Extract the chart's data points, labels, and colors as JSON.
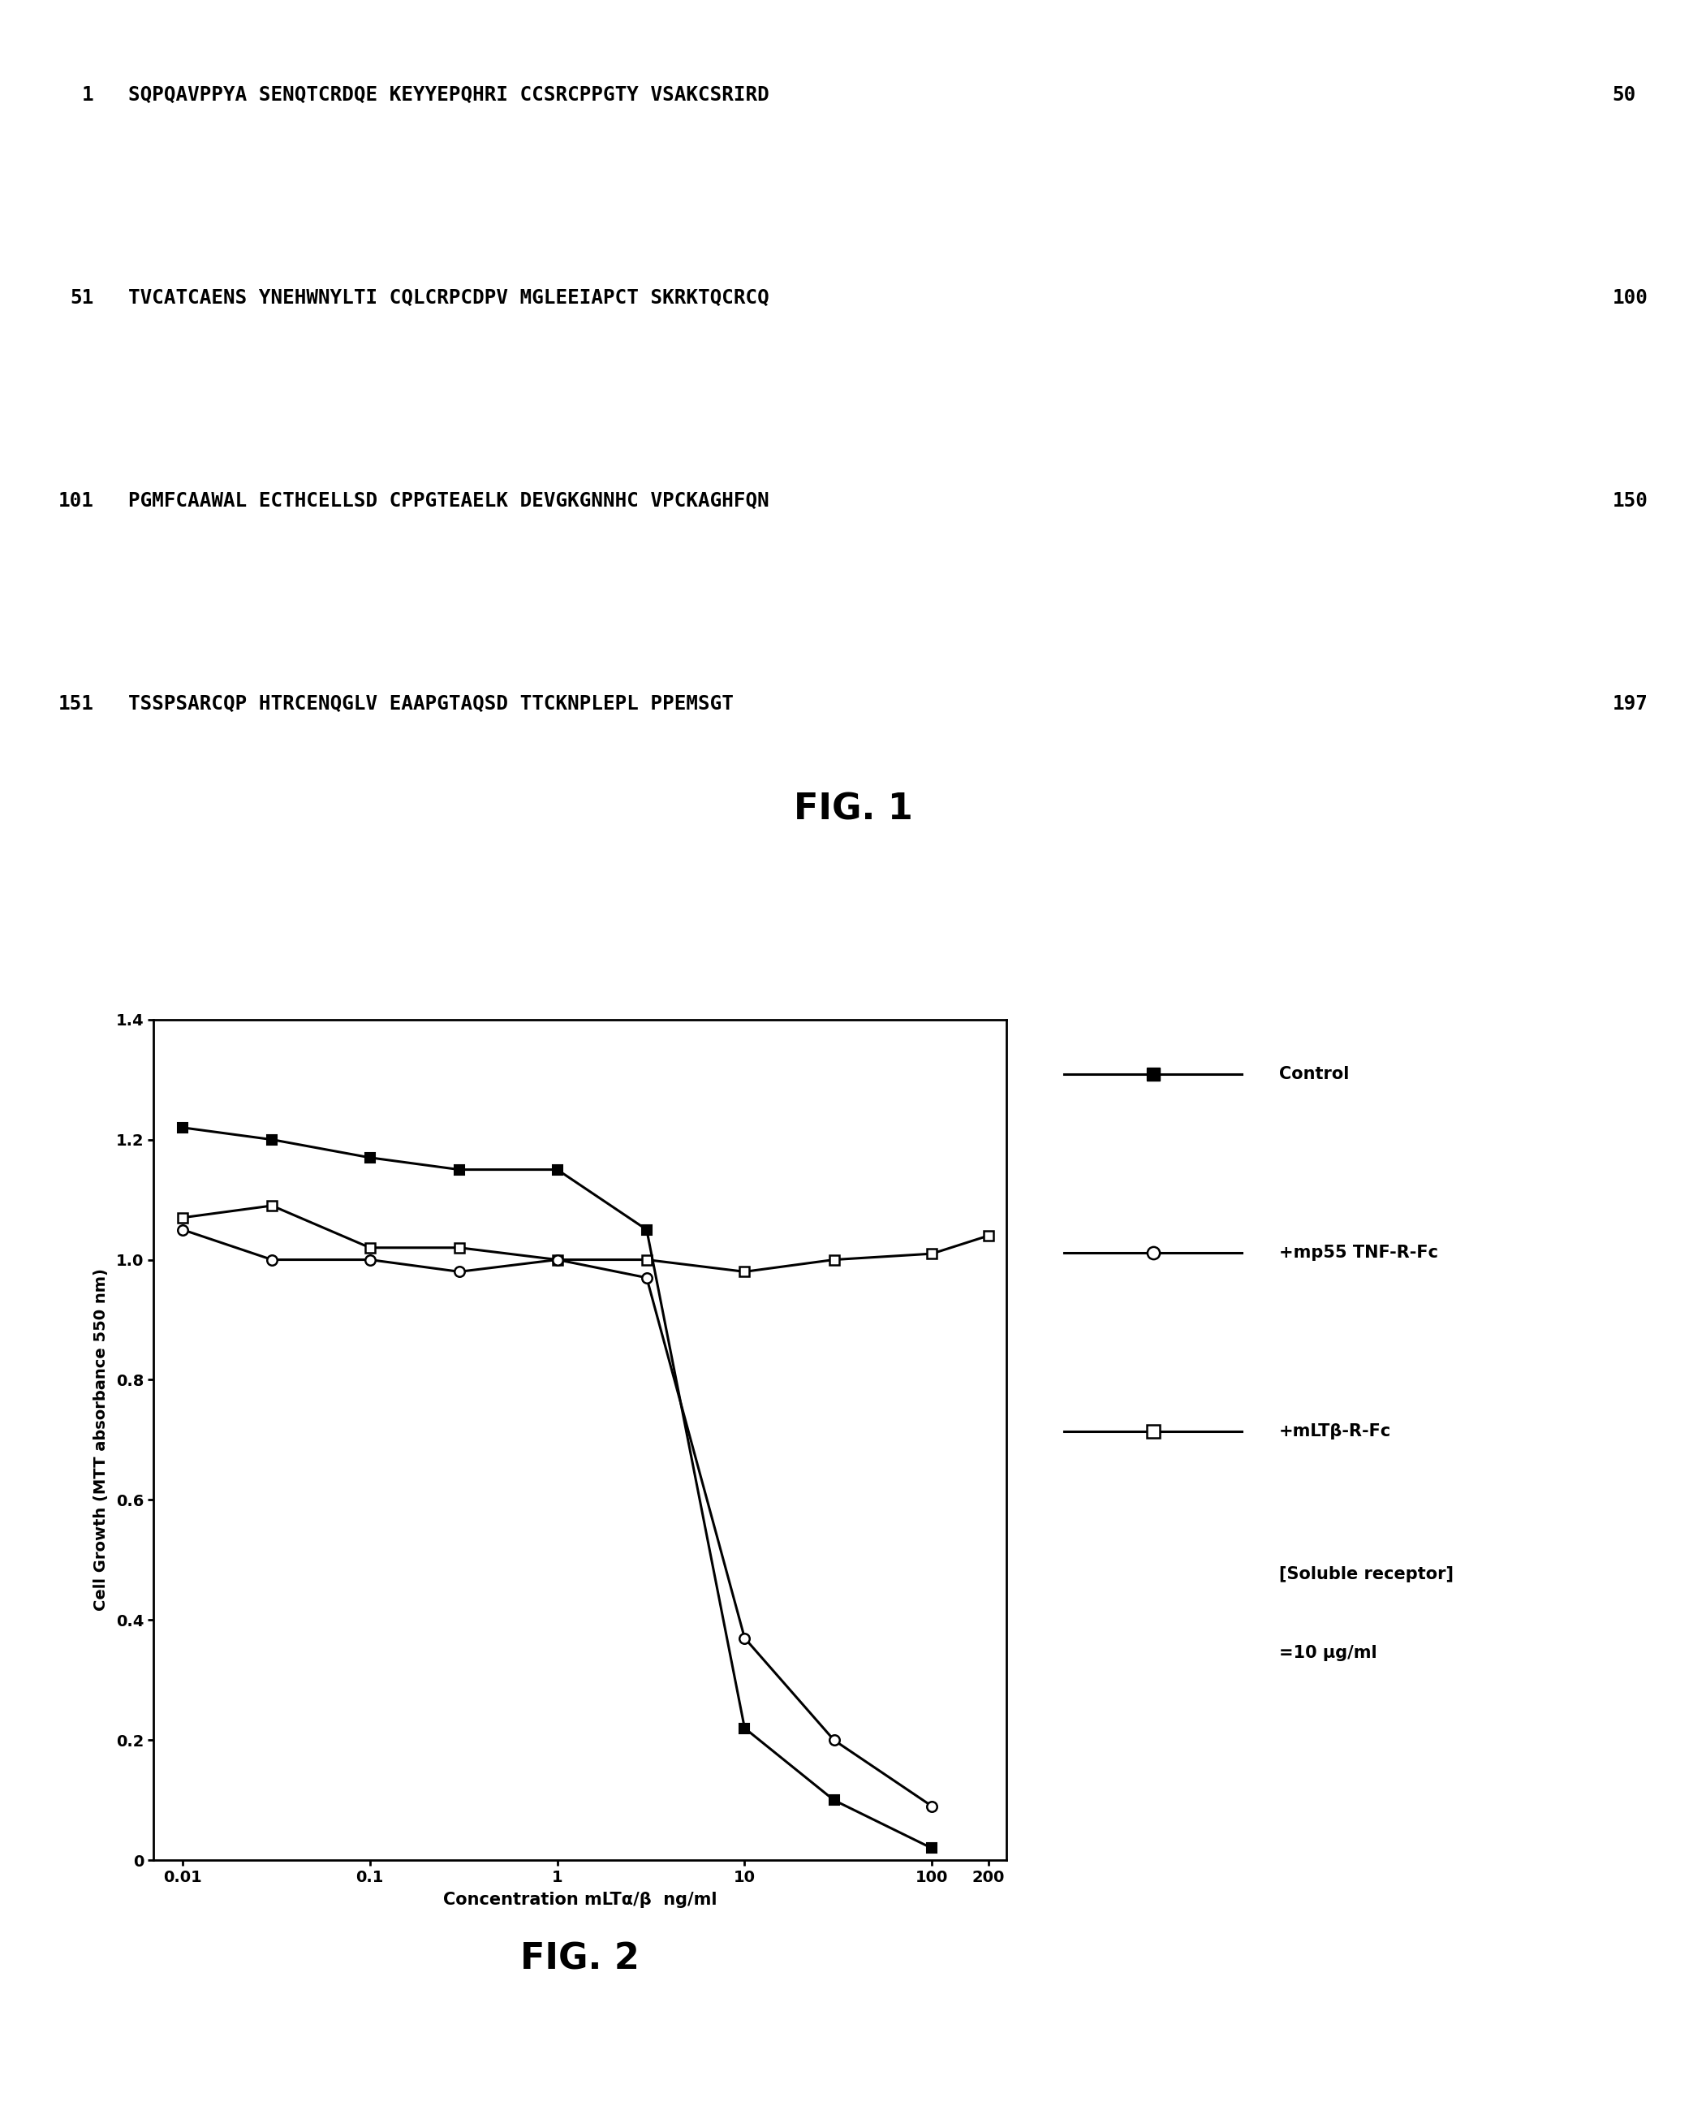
{
  "fig1_lines": [
    {
      "num": "1",
      "seq": "SQPQAVPPYA SENQTCRDQE KEYYEPQHRI CCSRCPPGTY VSAKCSRIRD",
      "end": "50"
    },
    {
      "num": "51",
      "seq": "TVCATCAENS YNEHWNYLTI CQLCRPCDPV MGLEEIAPCT SKRKTQCRCQ",
      "end": "100"
    },
    {
      "num": "101",
      "seq": "PGMFCAAWAL ECTHCELLSD CPPGTEAELK DEVGKGNNHC VPCKAGHFQN",
      "end": "150"
    },
    {
      "num": "151",
      "seq": "TSSPSARCQP HTRCENQGLV EAAPGTAQSD TTCKNPLEPL PPEMSGT",
      "end": "197"
    }
  ],
  "fig1_label": "FIG. 1",
  "fig2_label": "FIG. 2",
  "control_x": [
    0.01,
    0.03,
    0.1,
    0.3,
    1.0,
    3.0,
    10.0,
    30.0,
    100.0
  ],
  "control_y": [
    1.22,
    1.2,
    1.17,
    1.15,
    1.15,
    1.05,
    0.22,
    0.1,
    0.02
  ],
  "mp55_x": [
    0.01,
    0.03,
    0.1,
    0.3,
    1.0,
    3.0,
    10.0,
    30.0,
    100.0
  ],
  "mp55_y": [
    1.05,
    1.0,
    1.0,
    0.98,
    1.0,
    0.97,
    0.37,
    0.2,
    0.09
  ],
  "mltbr_x": [
    0.01,
    0.03,
    0.1,
    0.3,
    1.0,
    3.0,
    10.0,
    30.0,
    100.0,
    200.0
  ],
  "mltbr_y": [
    1.07,
    1.09,
    1.02,
    1.02,
    1.0,
    1.0,
    0.98,
    1.0,
    1.01,
    1.04
  ],
  "ylabel": "Cell Growth (MTT absorbance 550 nm)",
  "xlabel": "Concentration mLTα/β  ng/ml",
  "ylim": [
    0,
    1.4
  ],
  "yticks": [
    0,
    0.2,
    0.4,
    0.6,
    0.8,
    1.0,
    1.2,
    1.4
  ],
  "legend_control": "Control",
  "legend_mp55": "+mp55 TNF-R-Fc",
  "legend_mltbr": "+mLTβ-R-Fc",
  "legend_note1": "[Soluble receptor]",
  "legend_note2": "=10 μg/ml",
  "background_color": "#ffffff",
  "seq_font_size": 17.5,
  "fig_label_font_size": 32,
  "axis_font_size": 14,
  "legend_font_size": 15
}
